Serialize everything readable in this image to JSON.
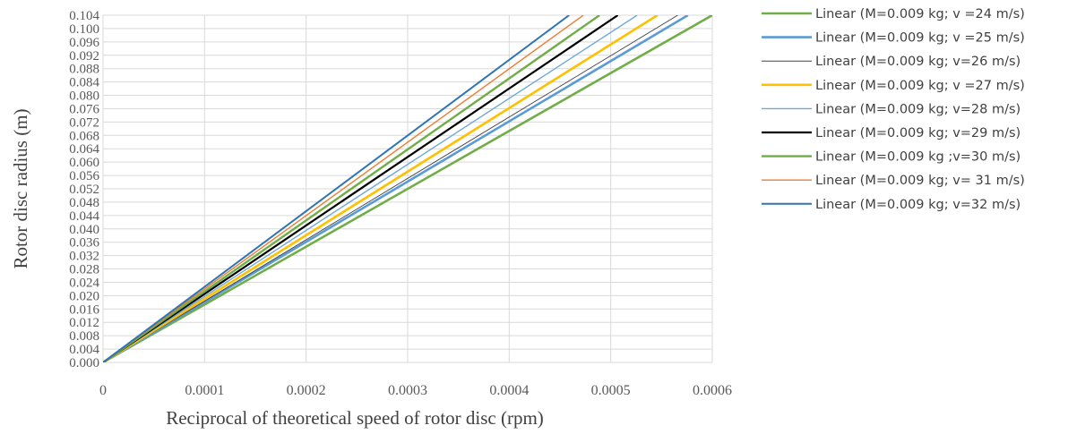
{
  "chart_data": {
    "type": "line",
    "title": "",
    "xlabel": "Reciprocal of theoretical speed of rotor disc (rpm)",
    "ylabel": "Rotor disc radius (m)",
    "xlim": [
      0,
      0.0006
    ],
    "ylim": [
      0,
      0.104
    ],
    "x_ticks": [
      "0",
      "0.0001",
      "0.0002",
      "0.0003",
      "0.0004",
      "0.0005",
      "0.0006"
    ],
    "y_ticks": [
      "0.000",
      "0.004",
      "0.008",
      "0.012",
      "0.016",
      "0.020",
      "0.024",
      "0.028",
      "0.032",
      "0.036",
      "0.040",
      "0.044",
      "0.048",
      "0.052",
      "0.056",
      "0.060",
      "0.064",
      "0.068",
      "0.072",
      "0.076",
      "0.080",
      "0.084",
      "0.088",
      "0.092",
      "0.096",
      "0.100",
      "0.104"
    ],
    "grid": "vertical",
    "legend_position": "right",
    "series": [
      {
        "name": "Linear (M=0.009 kg; v =24 m/s)",
        "color": "#70ad47",
        "width": 2.6,
        "x": [
          0,
          0.0006
        ],
        "y": [
          0,
          0.104
        ]
      },
      {
        "name": "Linear (M=0.009 kg; v =25 m/s)",
        "color": "#5b9bd5",
        "width": 2.6,
        "x": [
          0,
          0.000576
        ],
        "y": [
          0,
          0.104
        ]
      },
      {
        "name": "Linear (M=0.009 kg; v=26 m/s)",
        "color": "#404040",
        "width": 0.9,
        "x": [
          0,
          0.000566
        ],
        "y": [
          0,
          0.104
        ]
      },
      {
        "name": "Linear (M=0.009 kg; v =27 m/s)",
        "color": "#ffc000",
        "width": 2.6,
        "x": [
          0,
          0.000546
        ],
        "y": [
          0,
          0.104
        ]
      },
      {
        "name": "Linear (M=0.009 kg; v=28 m/s)",
        "color": "#6fa8dc",
        "width": 1.4,
        "x": [
          0,
          0.000526
        ],
        "y": [
          0,
          0.104
        ]
      },
      {
        "name": "Linear (M=0.009 kg; v=29 m/s)",
        "color": "#000000",
        "width": 2.2,
        "x": [
          0,
          0.000507
        ],
        "y": [
          0,
          0.104
        ]
      },
      {
        "name": "Linear (M=0.009 kg ;v=30 m/s)",
        "color": "#70ad47",
        "width": 2.4,
        "x": [
          0,
          0.000489
        ],
        "y": [
          0,
          0.104
        ]
      },
      {
        "name": "Linear (M=0.009 kg; v= 31 m/s)",
        "color": "#ed7d31",
        "width": 1.4,
        "x": [
          0,
          0.000473
        ],
        "y": [
          0,
          0.104
        ]
      },
      {
        "name": "Linear (M=0.009 kg; v=32 m/s)",
        "color": "#2e75b6",
        "width": 2.0,
        "x": [
          0,
          0.000459
        ],
        "y": [
          0,
          0.104
        ]
      }
    ]
  }
}
